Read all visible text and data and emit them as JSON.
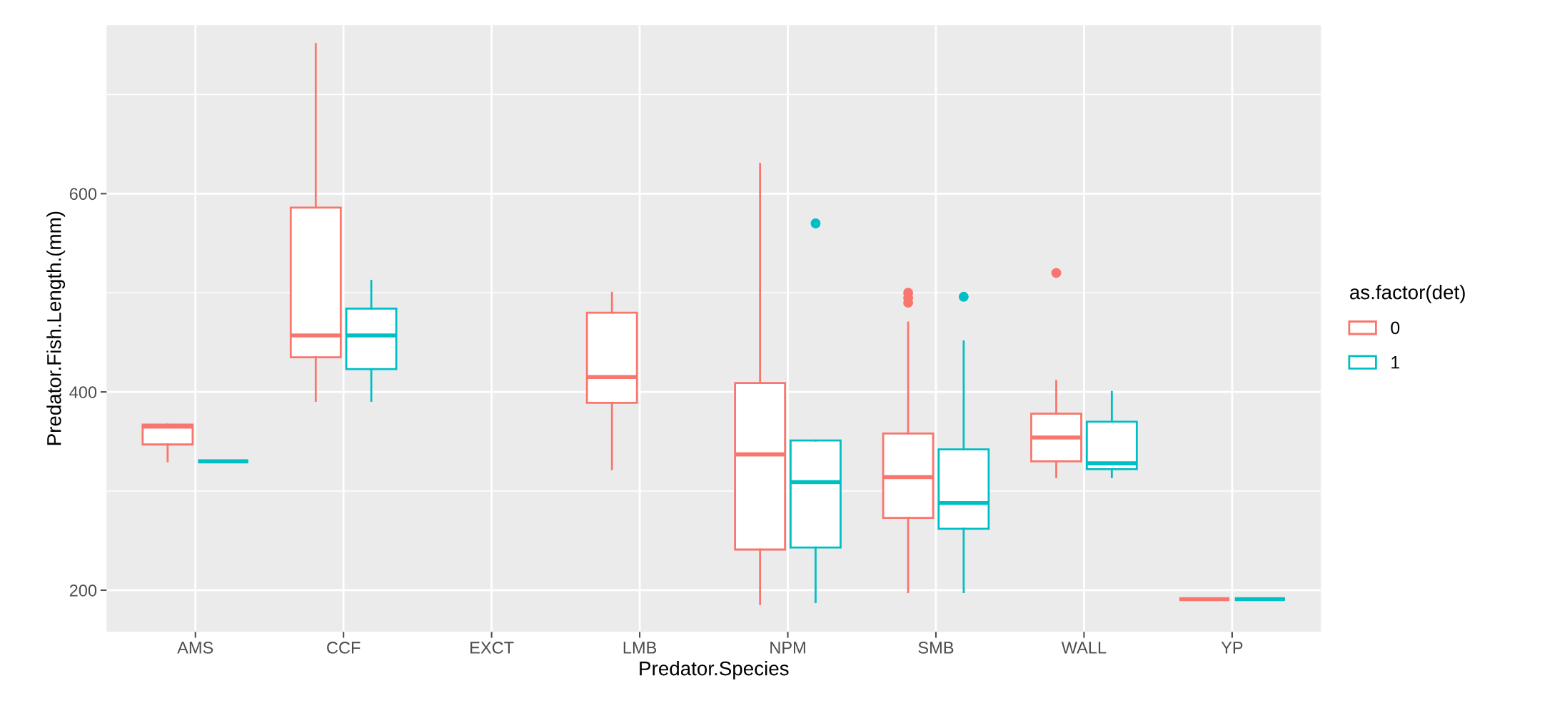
{
  "chart_data": {
    "type": "box",
    "xlabel": "Predator.Species",
    "ylabel": "Predator.Fish.Length.(mm)",
    "legend_title": "as.factor(det)",
    "categories": [
      "AMS",
      "CCF",
      "EXCT",
      "LMB",
      "NPM",
      "SMB",
      "WALL",
      "YP"
    ],
    "series": [
      {
        "name": "0",
        "color": "#f8766d",
        "boxes": [
          {
            "low": 330,
            "q1": 347,
            "median": 365,
            "q3": 367,
            "high": 367
          },
          {
            "low": 391,
            "q1": 435,
            "median": 457,
            "q3": 586,
            "high": 751
          },
          null,
          {
            "low": 322,
            "q1": 389,
            "median": 415,
            "q3": 480,
            "high": 500
          },
          {
            "low": 186,
            "q1": 241,
            "median": 337,
            "q3": 409,
            "high": 630
          },
          {
            "low": 198,
            "q1": 273,
            "median": 314,
            "q3": 358,
            "high": 470,
            "outliers": [
              490,
              495,
              500
            ]
          },
          {
            "low": 314,
            "q1": 330,
            "median": 354,
            "q3": 378,
            "high": 411,
            "outliers": [
              520
            ]
          },
          {
            "low": 191,
            "q1": 191,
            "median": 191,
            "q3": 191,
            "high": 191
          }
        ]
      },
      {
        "name": "1",
        "color": "#00bfc4",
        "boxes": [
          {
            "low": 330,
            "q1": 330,
            "median": 330,
            "q3": 330,
            "high": 330
          },
          {
            "low": 391,
            "q1": 423,
            "median": 457,
            "q3": 484,
            "high": 512
          },
          null,
          null,
          {
            "low": 188,
            "q1": 243,
            "median": 309,
            "q3": 351,
            "high": 351,
            "outliers": [
              570
            ]
          },
          {
            "low": 198,
            "q1": 262,
            "median": 288,
            "q3": 342,
            "high": 451,
            "outliers": [
              496
            ]
          },
          {
            "low": 314,
            "q1": 322,
            "median": 328,
            "q3": 370,
            "high": 400
          },
          {
            "low": 191,
            "q1": 191,
            "median": 191,
            "q3": 191,
            "high": 191
          }
        ]
      }
    ],
    "ylim": [
      158,
      770
    ],
    "yticks": [
      200,
      400,
      600
    ],
    "grid": true,
    "legend": "right"
  }
}
